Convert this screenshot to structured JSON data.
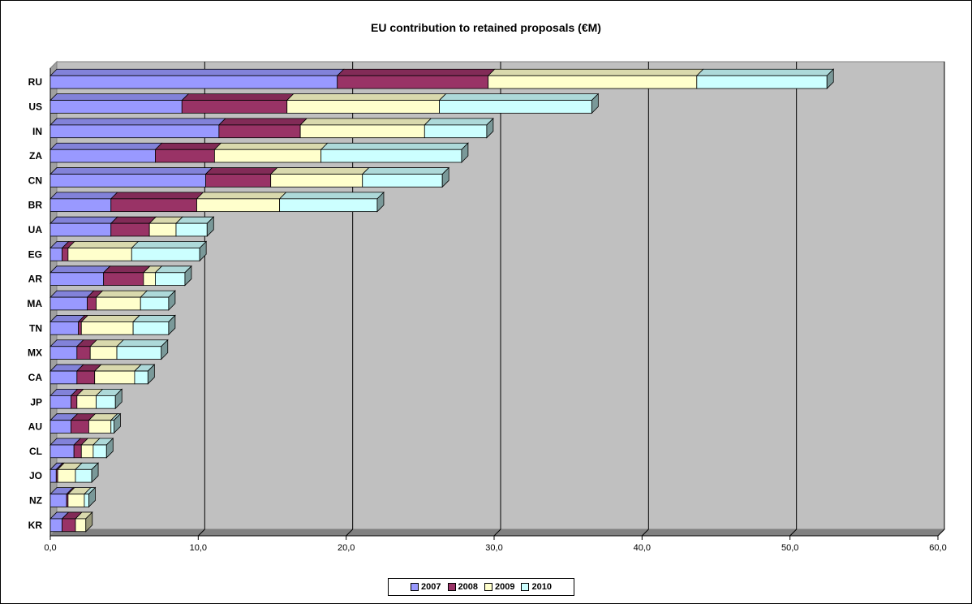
{
  "chart_data": {
    "type": "bar",
    "orientation": "horizontal",
    "stacked": true,
    "style": "3d",
    "title": "EU contribution to retained proposals (€M)",
    "xlabel": "",
    "ylabel": "",
    "xlim": [
      0,
      60
    ],
    "x_ticks": [
      "0,0",
      "10,0",
      "20,0",
      "30,0",
      "40,0",
      "50,0",
      "60,0"
    ],
    "grid": "vertical",
    "legend_position": "bottom",
    "categories": [
      "RU",
      "US",
      "IN",
      "ZA",
      "CN",
      "BR",
      "UA",
      "EG",
      "AR",
      "MA",
      "TN",
      "MX",
      "CA",
      "JP",
      "AU",
      "CL",
      "JO",
      "NZ",
      "KR"
    ],
    "series": [
      {
        "name": "2007",
        "color": "#9999FF",
        "values": [
          19.4,
          8.9,
          11.4,
          7.1,
          10.5,
          4.1,
          4.1,
          0.8,
          3.6,
          2.5,
          1.9,
          1.8,
          1.8,
          1.4,
          1.4,
          1.6,
          0.4,
          1.1,
          0.8
        ]
      },
      {
        "name": "2008",
        "color": "#993366",
        "values": [
          10.2,
          7.1,
          5.5,
          4.0,
          4.4,
          5.8,
          2.6,
          0.4,
          2.7,
          0.6,
          0.2,
          0.9,
          1.2,
          0.4,
          1.2,
          0.5,
          0.1,
          0.1,
          0.9
        ]
      },
      {
        "name": "2009",
        "color": "#FFFFCC",
        "values": [
          14.1,
          10.3,
          8.4,
          7.2,
          6.2,
          5.6,
          1.8,
          4.3,
          0.8,
          3.0,
          3.5,
          1.8,
          2.7,
          1.3,
          1.5,
          0.8,
          1.2,
          1.1,
          0.7
        ]
      },
      {
        "name": "2010",
        "color": "#CCFFFF",
        "values": [
          8.8,
          10.3,
          4.2,
          9.5,
          5.4,
          6.6,
          2.1,
          4.6,
          2.0,
          1.9,
          2.4,
          3.0,
          0.9,
          1.3,
          0.2,
          0.9,
          1.1,
          0.3,
          0.0
        ]
      }
    ]
  }
}
